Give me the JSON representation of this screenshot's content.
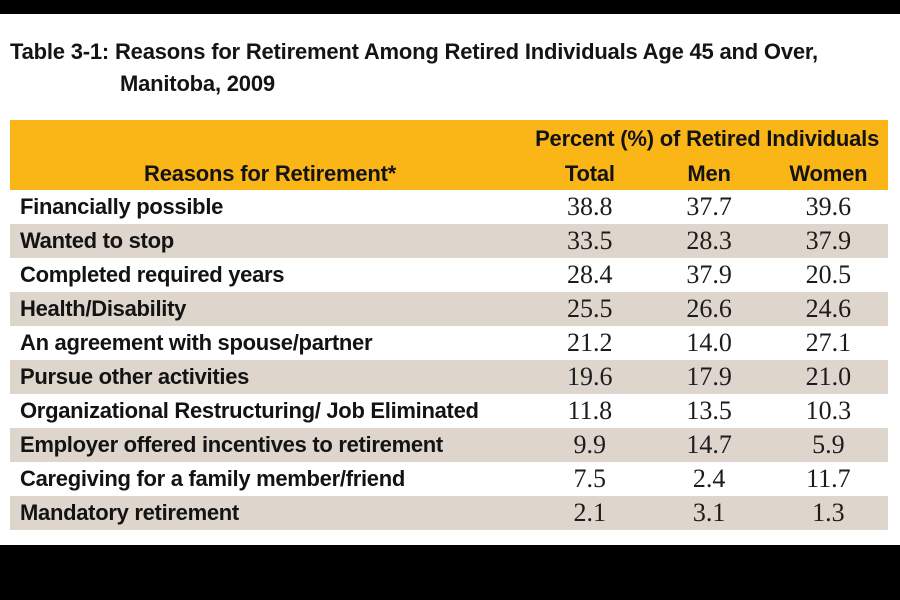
{
  "title": {
    "line1": "Table 3-1: Reasons for Retirement Among Retired Individuals Age 45 and Over,",
    "line2": "Manitoba, 2009"
  },
  "table": {
    "group_header": "Percent (%) of Retired Individuals",
    "row_header": "Reasons for Retirement*",
    "columns": [
      "Total",
      "Men",
      "Women"
    ],
    "rows": [
      {
        "label": "Financially possible",
        "total": "38.8",
        "men": "37.7",
        "women": "39.6"
      },
      {
        "label": "Wanted to stop",
        "total": "33.5",
        "men": "28.3",
        "women": "37.9"
      },
      {
        "label": "Completed required years",
        "total": "28.4",
        "men": "37.9",
        "women": "20.5"
      },
      {
        "label": "Health/Disability",
        "total": "25.5",
        "men": "26.6",
        "women": "24.6"
      },
      {
        "label": "An agreement with spouse/partner",
        "total": "21.2",
        "men": "14.0",
        "women": "27.1"
      },
      {
        "label": "Pursue other activities",
        "total": "19.6",
        "men": "17.9",
        "women": "21.0"
      },
      {
        "label": "Organizational Restructuring/ Job Eliminated",
        "total": "11.8",
        "men": "13.5",
        "women": "10.3"
      },
      {
        "label": "Employer offered incentives to retirement",
        "total": "9.9",
        "men": "14.7",
        "women": "5.9"
      },
      {
        "label": "Caregiving for a family member/friend",
        "total": "7.5",
        "men": "2.4",
        "women": "11.7"
      },
      {
        "label": "Mandatory retirement",
        "total": "2.1",
        "men": "3.1",
        "women": "1.3"
      }
    ]
  },
  "colors": {
    "header_bg": "#FAB517",
    "row_alt_bg": "#DED5CC",
    "bar": "#000000",
    "text": "#131313"
  }
}
